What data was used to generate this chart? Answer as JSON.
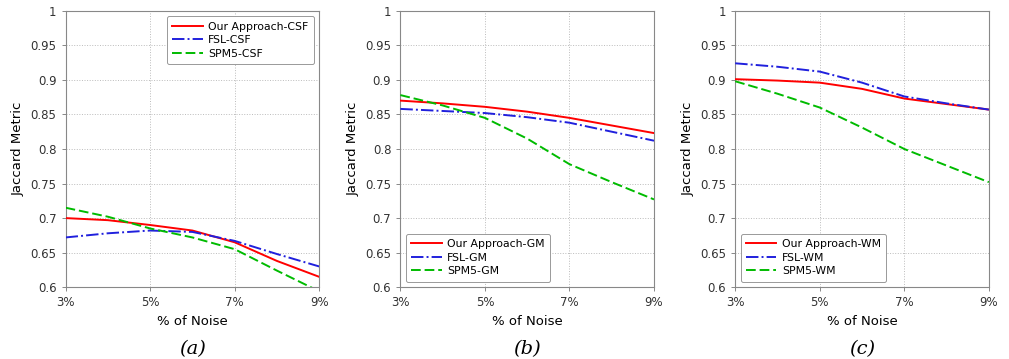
{
  "x_values": [
    3,
    4,
    5,
    6,
    7,
    8,
    9
  ],
  "x_ticks": [
    3,
    5,
    7,
    9
  ],
  "x_ticklabels": [
    "3%",
    "5%",
    "7%",
    "9%"
  ],
  "x_label": "% of Noise",
  "y_label": "Jaccard Metric",
  "y_lim": [
    0.6,
    1.0
  ],
  "y_ticks": [
    0.6,
    0.65,
    0.7,
    0.75,
    0.8,
    0.85,
    0.9,
    0.95,
    1.0
  ],
  "y_ticklabels": [
    "0.6",
    "0.65",
    "0.7",
    "0.75",
    "0.8",
    "0.85",
    "0.9",
    "0.95",
    "1"
  ],
  "subplot_a": {
    "our_approach": [
      0.7,
      0.697,
      0.69,
      0.682,
      0.665,
      0.638,
      0.615
    ],
    "fsl": [
      0.672,
      0.678,
      0.682,
      0.68,
      0.667,
      0.648,
      0.63
    ],
    "spm5": [
      0.715,
      0.702,
      0.685,
      0.672,
      0.655,
      0.624,
      0.594
    ]
  },
  "subplot_b": {
    "our_approach": [
      0.87,
      0.866,
      0.861,
      0.854,
      0.845,
      0.834,
      0.823
    ],
    "fsl": [
      0.858,
      0.855,
      0.852,
      0.846,
      0.838,
      0.825,
      0.812
    ],
    "spm5": [
      0.878,
      0.863,
      0.845,
      0.815,
      0.778,
      0.752,
      0.727
    ]
  },
  "subplot_c": {
    "our_approach": [
      0.901,
      0.899,
      0.896,
      0.887,
      0.873,
      0.865,
      0.857
    ],
    "fsl": [
      0.924,
      0.919,
      0.912,
      0.896,
      0.876,
      0.866,
      0.857
    ],
    "spm5": [
      0.898,
      0.88,
      0.86,
      0.831,
      0.8,
      0.776,
      0.752
    ]
  },
  "legend_labels_a": [
    "Our Approach-CSF",
    "FSL-CSF",
    "SPM5-CSF"
  ],
  "legend_labels_b": [
    "Our Approach-GM",
    "FSL-GM",
    "SPM5-GM"
  ],
  "legend_labels_c": [
    "Our Approach-WM",
    "FSL-WM",
    "SPM5-WM"
  ],
  "color_our": "#FF0000",
  "color_fsl": "#2020DD",
  "color_spm5": "#00BB00",
  "bg_color": "#FFFFFF",
  "grid_color": "#BBBBBB"
}
